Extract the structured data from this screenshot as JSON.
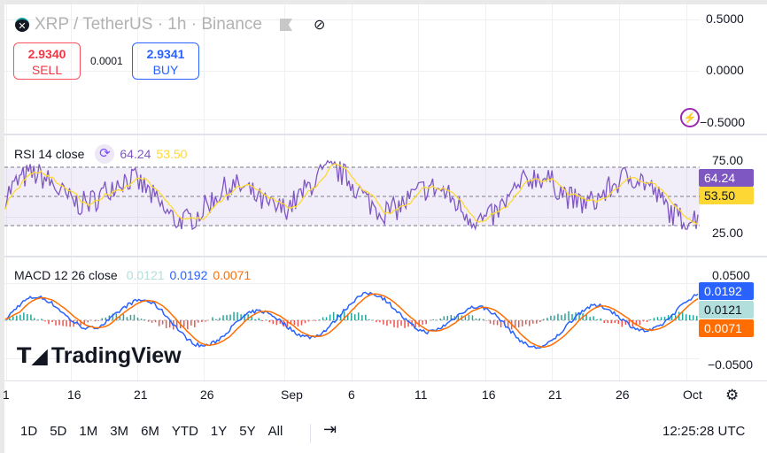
{
  "header": {
    "symbol": "XRP",
    "title": "XRP / TetherUS · 1h · Binance",
    "sell_price": "2.9340",
    "sell_label": "SELL",
    "spread": "0.0001",
    "buy_price": "2.9341",
    "buy_label": "BUY"
  },
  "price_axis": [
    "0.5000",
    "0.0000",
    "−0.5000"
  ],
  "rsi": {
    "label": "RSI 14 close",
    "value": "64.24",
    "ma": "53.50",
    "axis": [
      "75.00",
      "25.00"
    ],
    "color": "#7e57c2",
    "ma_color": "#fdd835"
  },
  "macd": {
    "label": "MACD 12 26 close",
    "hist": "0.0121",
    "macd": "0.0192",
    "signal": "0.0071",
    "axis": [
      "0.0500",
      "−0.0500"
    ],
    "macd_color": "#2962ff",
    "signal_color": "#ff6d00",
    "hist_color": "#b2dfdb"
  },
  "watermark": "TradingView",
  "time_axis": [
    "1",
    "16",
    "21",
    "26",
    "Sep",
    "6",
    "11",
    "16",
    "21",
    "26",
    "Oct"
  ],
  "ranges": [
    "1D",
    "5D",
    "1M",
    "3M",
    "6M",
    "YTD",
    "1Y",
    "5Y",
    "All"
  ],
  "clock": "12:25:28 UTC"
}
